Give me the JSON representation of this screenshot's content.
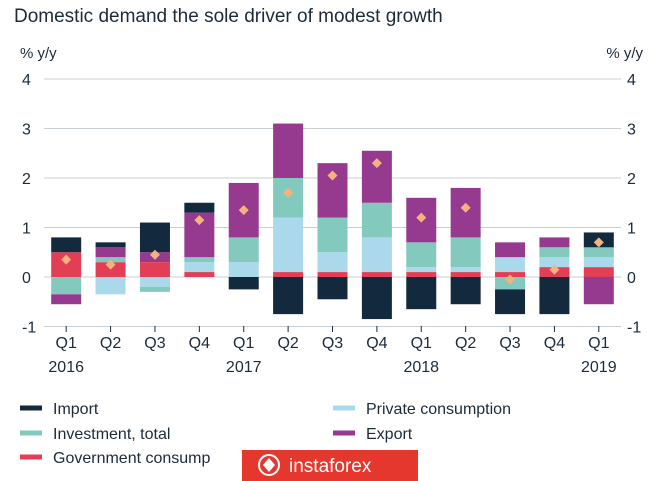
{
  "chart_data": {
    "type": "bar",
    "title": "Domestic demand the sole driver of modest growth",
    "ylabel_left": "% y/y",
    "ylabel_right": "% y/y",
    "ylim": [
      -1,
      4
    ],
    "yticks": [
      4,
      3,
      2,
      1,
      0,
      -1
    ],
    "grid": true,
    "categories": [
      "Q1",
      "Q2",
      "Q3",
      "Q4",
      "Q1",
      "Q2",
      "Q3",
      "Q4",
      "Q1",
      "Q2",
      "Q3",
      "Q4",
      "Q1"
    ],
    "years": [
      {
        "label": "2016",
        "index": 0
      },
      {
        "label": "2017",
        "index": 4
      },
      {
        "label": "2018",
        "index": 8
      },
      {
        "label": "2019",
        "index": 12
      }
    ],
    "series": [
      {
        "name": "Government consump",
        "color": "#e23f57",
        "values": [
          0.5,
          0.3,
          0.3,
          0.1,
          0,
          0.1,
          0.1,
          0.1,
          0.1,
          0.1,
          0.1,
          0.2,
          0.2
        ]
      },
      {
        "name": "Private consumption",
        "color": "#a9d9ea",
        "values": [
          0,
          -0.35,
          -0.2,
          0.2,
          0.3,
          1.1,
          0.4,
          0.7,
          0.1,
          0.1,
          0.3,
          0.2,
          0.2
        ]
      },
      {
        "name": "Investment, total",
        "color": "#84c9bd",
        "values": [
          -0.35,
          0.1,
          -0.1,
          0.1,
          0.5,
          0.8,
          0.7,
          0.7,
          0.5,
          0.6,
          -0.25,
          0.2,
          0.2
        ]
      },
      {
        "name": "Export",
        "color": "#953a8f",
        "values": [
          -0.2,
          0.2,
          0.2,
          0.9,
          1.1,
          1.1,
          1.1,
          1.05,
          0.9,
          1.0,
          0.3,
          0.2,
          -0.55
        ]
      },
      {
        "name": "Import",
        "color": "#13293d",
        "values": [
          0.3,
          0.1,
          0.6,
          0.2,
          -0.25,
          -0.75,
          -0.45,
          -0.85,
          -0.65,
          -0.55,
          -0.5,
          -0.75,
          0.3
        ]
      }
    ],
    "total": {
      "name": "GDP",
      "color": "#f3b37e",
      "values": [
        0.35,
        0.25,
        0.45,
        1.15,
        1.35,
        1.7,
        2.05,
        2.3,
        1.2,
        1.4,
        -0.05,
        0.15,
        0.7
      ]
    }
  },
  "legend_order": [
    "Import",
    "Private consumption",
    "Investment, total",
    "Export",
    "Government consump"
  ],
  "watermark": "instaforex"
}
